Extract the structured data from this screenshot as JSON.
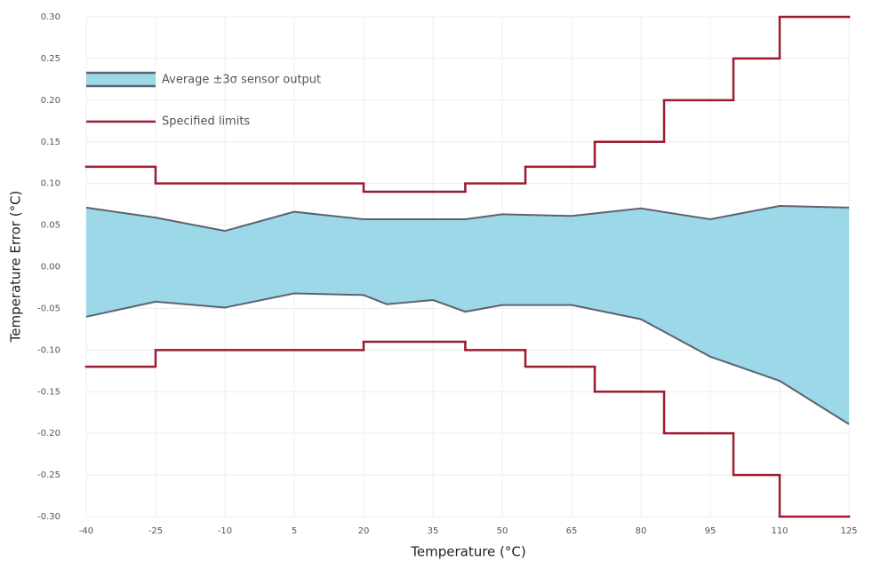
{
  "chart_data": {
    "type": "band",
    "xlabel": "Temperature (°C)",
    "ylabel": "Temperature Error (°C)",
    "band": {
      "name": "Average ±3σ sensor output",
      "color": "#5b6272",
      "fill": "#9dd8e8",
      "x": [
        -40,
        -25,
        -10,
        5,
        20,
        25,
        35,
        42,
        50,
        65,
        80,
        95,
        110,
        125
      ],
      "upper": [
        0.071,
        0.059,
        0.043,
        0.066,
        0.057,
        0.057,
        0.057,
        0.057,
        0.063,
        0.061,
        0.07,
        0.057,
        0.073,
        0.071
      ],
      "lower": [
        -0.06,
        -0.042,
        -0.049,
        -0.032,
        -0.034,
        -0.045,
        -0.04,
        -0.054,
        -0.046,
        -0.046,
        -0.063,
        -0.108,
        -0.137,
        -0.189
      ]
    },
    "limits": {
      "name": "Specified limits",
      "color": "#9b1b30",
      "edges": [
        -40,
        -25,
        20,
        42,
        55,
        70,
        85,
        100,
        110,
        125
      ],
      "upper": [
        0.12,
        0.1,
        0.09,
        0.1,
        0.12,
        0.15,
        0.2,
        0.25,
        0.3
      ],
      "lower": [
        -0.12,
        -0.1,
        -0.09,
        -0.1,
        -0.12,
        -0.15,
        -0.2,
        -0.25,
        -0.3
      ]
    },
    "xlim": [
      -40,
      125
    ],
    "xticks": [
      -40,
      -25,
      -10,
      5,
      20,
      35,
      50,
      65,
      80,
      95,
      110,
      125
    ],
    "ylim": [
      -0.3,
      0.3
    ],
    "yticks": [
      {
        "value": 0.3,
        "label": "0.30"
      },
      {
        "value": 0.25,
        "label": "0.25"
      },
      {
        "value": 0.2,
        "label": "0.20"
      },
      {
        "value": 0.15,
        "label": "0.15"
      },
      {
        "value": 0.1,
        "label": "0.10"
      },
      {
        "value": 0.05,
        "label": "0.05"
      },
      {
        "value": 0,
        "label": "0.00"
      },
      {
        "value": -0.05,
        "label": "-0.05"
      },
      {
        "value": -0.1,
        "label": "-0.10"
      },
      {
        "value": -0.15,
        "label": "-0.15"
      },
      {
        "value": -0.2,
        "label": "-0.20"
      },
      {
        "value": -0.25,
        "label": "-0.25"
      },
      {
        "value": -0.3,
        "label": "-0.30"
      }
    ],
    "grid": true,
    "legend": "upper left"
  }
}
